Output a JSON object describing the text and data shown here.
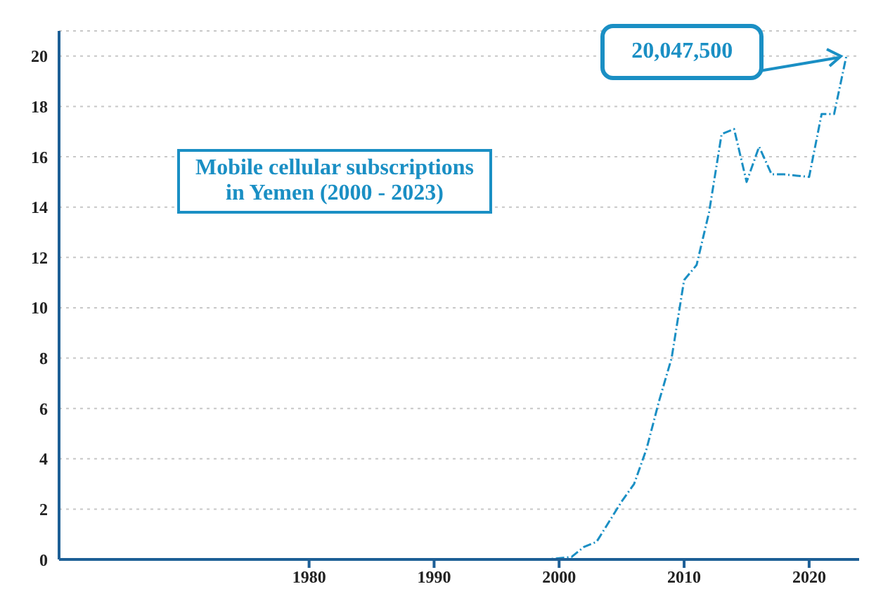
{
  "chart_data": {
    "type": "line",
    "title": "Mobile cellular subscriptions in Yemen (2000 - 2023)",
    "x": [
      1975,
      1999,
      2000,
      2001,
      2002,
      2003,
      2004,
      2005,
      2006,
      2007,
      2008,
      2009,
      2010,
      2011,
      2012,
      2013,
      2014,
      2015,
      2016,
      2017,
      2018,
      2019,
      2020,
      2021,
      2022,
      2023
    ],
    "series": [
      {
        "color": "#1a8fc4",
        "values": [
          0,
          0,
          0.05,
          0.1,
          0.5,
          0.7,
          1.5,
          2.3,
          3.0,
          4.4,
          6.3,
          8.0,
          11.1,
          11.7,
          13.8,
          16.9,
          17.1,
          15.0,
          16.4,
          15.3,
          15.3,
          15.25,
          15.2,
          17.7,
          17.7,
          20.05
        ]
      }
    ],
    "xlim": [
      1960,
      2024
    ],
    "xticks": [
      1980,
      1990,
      2000,
      2010,
      2020
    ],
    "ylim": [
      0,
      21
    ],
    "yticks": [
      0,
      2,
      4,
      6,
      8,
      10,
      12,
      14,
      16,
      18,
      20
    ],
    "grid": "y",
    "line_style": "dashed",
    "marker": "none",
    "annotations": [
      {
        "text": "20,047,500",
        "x": 2023,
        "y": 20.05
      }
    ]
  }
}
